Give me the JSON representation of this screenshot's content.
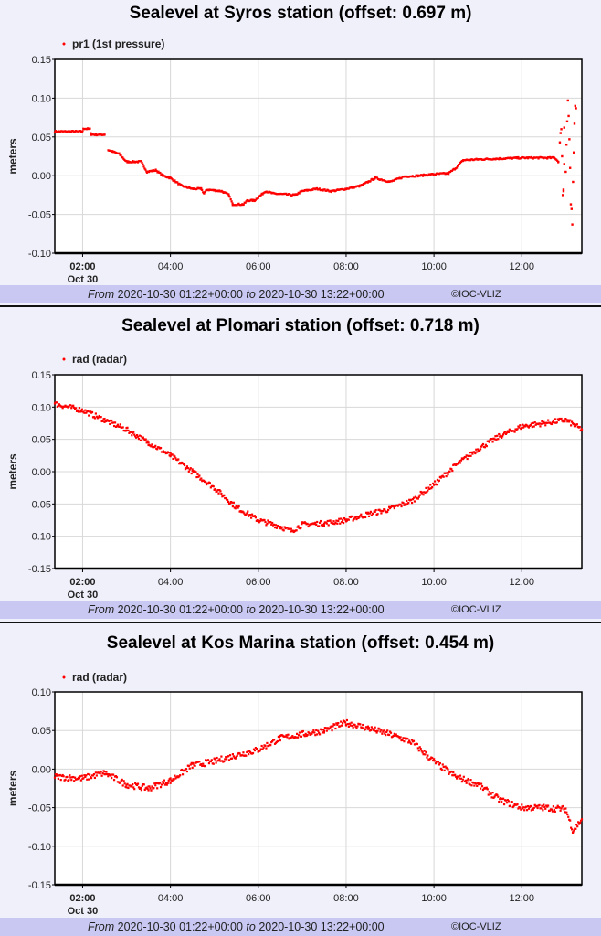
{
  "chart_data": [
    {
      "type": "scatter",
      "title": "Sealevel at Syros station (offset: 0.697 m)",
      "ylabel": "meters",
      "legend": "pr1 (1st pressure)",
      "legend_placement": "top-left",
      "ylim": [
        -0.1,
        0.15
      ],
      "yticks": [
        "0.15",
        "0.10",
        "0.05",
        "0.00",
        "-0.05",
        "-0.10"
      ],
      "xlim": [
        "01:22",
        "13:22"
      ],
      "xticks": [
        "02:00",
        "04:00",
        "06:00",
        "08:00",
        "10:00",
        "12:00"
      ],
      "xdate_label": "Oct 30",
      "grid": true,
      "color": "#ff0000",
      "footer": {
        "from_label": "From",
        "from": "2020-10-30 01:22+00:00",
        "to_label": "to",
        "to": "2020-10-30 13:22+00:00",
        "copyright": "©IOC-VLIZ"
      },
      "series": [
        {
          "segments": [
            [
              [
                "01:22",
                0.057
              ],
              [
                "02:00",
                0.057
              ],
              [
                "02:01",
                0.061
              ],
              [
                "02:10",
                0.06
              ],
              [
                "02:12",
                0.053
              ],
              [
                "02:30",
                0.053
              ]
            ],
            [
              [
                "02:35",
                0.033
              ],
              [
                "02:50",
                0.028
              ],
              [
                "03:00",
                0.018
              ],
              [
                "03:20",
                0.018
              ],
              [
                "03:28",
                0.005
              ],
              [
                "03:40",
                0.007
              ],
              [
                "03:50",
                0.0
              ],
              [
                "04:00",
                -0.003
              ],
              [
                "04:15",
                -0.013
              ],
              [
                "04:30",
                -0.017
              ],
              [
                "04:42",
                -0.017
              ],
              [
                "04:46",
                -0.023
              ],
              [
                "04:50",
                -0.018
              ],
              [
                "05:10",
                -0.02
              ],
              [
                "05:20",
                -0.025
              ],
              [
                "05:25",
                -0.037
              ],
              [
                "05:40",
                -0.037
              ],
              [
                "05:45",
                -0.032
              ],
              [
                "05:55",
                -0.032
              ],
              [
                "06:00",
                -0.028
              ],
              [
                "06:10",
                -0.02
              ],
              [
                "06:20",
                -0.023
              ],
              [
                "06:50",
                -0.025
              ],
              [
                "07:00",
                -0.02
              ],
              [
                "07:20",
                -0.017
              ],
              [
                "07:40",
                -0.02
              ],
              [
                "08:00",
                -0.017
              ],
              [
                "08:20",
                -0.013
              ],
              [
                "08:40",
                -0.003
              ],
              [
                "09:00",
                -0.008
              ],
              [
                "09:20",
                -0.001
              ],
              [
                "09:40",
                0.0
              ],
              [
                "10:00",
                0.002
              ],
              [
                "10:20",
                0.003
              ],
              [
                "10:30",
                0.01
              ],
              [
                "10:40",
                0.02
              ],
              [
                "11:00",
                0.021
              ],
              [
                "11:30",
                0.022
              ],
              [
                "12:00",
                0.023
              ],
              [
                "12:45",
                0.023
              ],
              [
                "12:50",
                0.018
              ]
            ]
          ],
          "scatter": [
            [
              "12:52",
              0.043
            ],
            [
              "12:53",
              0.055
            ],
            [
              "12:54",
              0.06
            ],
            [
              "12:55",
              0.025
            ],
            [
              "12:56",
              -0.025
            ],
            [
              "12:57",
              -0.02
            ],
            [
              "12:58",
              0.015
            ],
            [
              "13:00",
              0.005
            ],
            [
              "13:01",
              0.04
            ],
            [
              "13:02",
              0.07
            ],
            [
              "13:03",
              0.097
            ],
            [
              "13:04",
              0.077
            ],
            [
              "13:05",
              0.047
            ],
            [
              "13:06",
              0.01
            ],
            [
              "13:07",
              -0.037
            ],
            [
              "13:08",
              -0.043
            ],
            [
              "13:09",
              -0.063
            ],
            [
              "13:10",
              -0.008
            ],
            [
              "13:11",
              0.03
            ],
            [
              "13:12",
              0.067
            ],
            [
              "13:13",
              0.09
            ],
            [
              "13:14",
              0.087
            ],
            [
              "12:58",
              0.062
            ],
            [
              "12:57",
              -0.018
            ]
          ]
        }
      ]
    },
    {
      "type": "scatter",
      "title": "Sealevel at Plomari station (offset: 0.718 m)",
      "ylabel": "meters",
      "legend": "rad (radar)",
      "legend_placement": "top-left",
      "ylim": [
        -0.15,
        0.15
      ],
      "yticks": [
        "0.15",
        "0.10",
        "0.05",
        "0.00",
        "-0.05",
        "-0.10",
        "-0.15"
      ],
      "xlim": [
        "01:22",
        "13:22"
      ],
      "xticks": [
        "02:00",
        "04:00",
        "06:00",
        "08:00",
        "10:00",
        "12:00"
      ],
      "xdate_label": "Oct 30",
      "grid": true,
      "color": "#ff0000",
      "footer": {
        "from_label": "From",
        "from": "2020-10-30 01:22+00:00",
        "to_label": "to",
        "to": "2020-10-30 13:22+00:00",
        "copyright": "©IOC-VLIZ"
      },
      "series": [
        {
          "segments": [
            [
              [
                "01:22",
                0.105
              ],
              [
                "02:00",
                0.095
              ],
              [
                "02:30",
                0.08
              ],
              [
                "03:00",
                0.065
              ],
              [
                "03:30",
                0.045
              ],
              [
                "04:00",
                0.025
              ],
              [
                "04:30",
                0.0
              ],
              [
                "05:00",
                -0.025
              ],
              [
                "05:30",
                -0.055
              ],
              [
                "06:00",
                -0.075
              ],
              [
                "06:30",
                -0.085
              ],
              [
                "06:45",
                -0.092
              ],
              [
                "07:00",
                -0.082
              ],
              [
                "07:30",
                -0.08
              ],
              [
                "08:00",
                -0.075
              ],
              [
                "08:30",
                -0.066
              ],
              [
                "09:00",
                -0.058
              ],
              [
                "09:30",
                -0.045
              ],
              [
                "10:00",
                -0.02
              ],
              [
                "10:30",
                0.01
              ],
              [
                "11:00",
                0.035
              ],
              [
                "11:30",
                0.055
              ],
              [
                "12:00",
                0.07
              ],
              [
                "12:30",
                0.075
              ],
              [
                "13:00",
                0.08
              ],
              [
                "13:22",
                0.065
              ]
            ]
          ],
          "scatter": []
        }
      ]
    },
    {
      "type": "scatter",
      "title": "Sealevel at Kos Marina station (offset: 0.454 m)",
      "ylabel": "meters",
      "legend": "rad (radar)",
      "legend_placement": "top-left",
      "ylim": [
        -0.15,
        0.1
      ],
      "yticks": [
        "0.10",
        "0.05",
        "0.00",
        "-0.05",
        "-0.10",
        "-0.15"
      ],
      "xlim": [
        "01:22",
        "13:22"
      ],
      "xticks": [
        "02:00",
        "04:00",
        "06:00",
        "08:00",
        "10:00",
        "12:00"
      ],
      "xdate_label": "Oct 30",
      "grid": true,
      "color": "#ff0000",
      "footer": {
        "from_label": "From",
        "from": "2020-10-30 01:22+00:00",
        "to_label": "to",
        "to": "2020-10-30 13:22+00:00",
        "copyright": "©IOC-VLIZ"
      },
      "series": [
        {
          "segments": [
            [
              [
                "01:22",
                -0.01
              ],
              [
                "02:00",
                -0.012
              ],
              [
                "02:30",
                -0.005
              ],
              [
                "03:00",
                -0.02
              ],
              [
                "03:30",
                -0.025
              ],
              [
                "04:00",
                -0.015
              ],
              [
                "04:30",
                0.005
              ],
              [
                "05:00",
                0.01
              ],
              [
                "05:30",
                0.018
              ],
              [
                "06:00",
                0.025
              ],
              [
                "06:30",
                0.04
              ],
              [
                "07:00",
                0.045
              ],
              [
                "07:30",
                0.05
              ],
              [
                "08:00",
                0.06
              ],
              [
                "08:30",
                0.053
              ],
              [
                "09:00",
                0.045
              ],
              [
                "09:30",
                0.035
              ],
              [
                "10:00",
                0.01
              ],
              [
                "10:30",
                -0.01
              ],
              [
                "11:00",
                -0.02
              ],
              [
                "11:30",
                -0.04
              ],
              [
                "12:00",
                -0.05
              ],
              [
                "12:30",
                -0.05
              ],
              [
                "13:00",
                -0.052
              ],
              [
                "13:10",
                -0.08
              ],
              [
                "13:22",
                -0.065
              ]
            ]
          ],
          "scatter": []
        }
      ]
    }
  ]
}
